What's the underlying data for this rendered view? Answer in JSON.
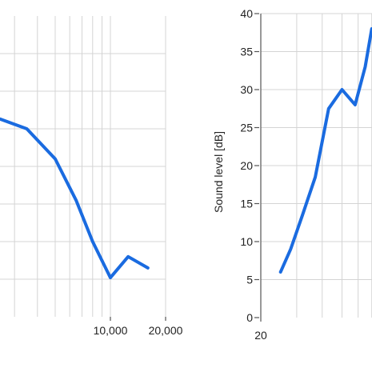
{
  "chart_data": [
    {
      "type": "line",
      "title": "",
      "xlabel": "",
      "ylabel": "",
      "x_scale": "log",
      "xlim": [
        1000,
        20000
      ],
      "ylim": [
        0,
        40
      ],
      "grid": true,
      "x_ticks": [
        {
          "value": 10000,
          "label": "10,000"
        },
        {
          "value": 20000,
          "label": "20,000"
        }
      ],
      "x_gridlines": [
        1000,
        2000,
        3000,
        4000,
        5000,
        6000,
        7000,
        8000,
        9000,
        10000,
        20000
      ],
      "y_gridlines": [
        5,
        10,
        15,
        20,
        25,
        30,
        35
      ],
      "series": [
        {
          "color": "#1a6be0",
          "x": [
            800,
            2000,
            2500,
            3500,
            5000,
            6500,
            8000,
            10000,
            12500,
            16000
          ],
          "y": [
            28.5,
            26.8,
            26.3,
            25.0,
            21.0,
            15.5,
            10.0,
            5.2,
            8.0,
            6.5
          ]
        }
      ]
    },
    {
      "type": "line",
      "title": "",
      "xlabel": "",
      "ylabel": "Sound level [dB]",
      "x_scale": "log",
      "xlim": [
        20,
        20000
      ],
      "ylim": [
        0,
        40
      ],
      "grid": true,
      "x_ticks": [
        {
          "value": 20,
          "label": "20"
        }
      ],
      "y_ticks": [
        {
          "value": 0,
          "label": "0"
        },
        {
          "value": 5,
          "label": "5"
        },
        {
          "value": 10,
          "label": "10"
        },
        {
          "value": 15,
          "label": "15"
        },
        {
          "value": 20,
          "label": "20"
        },
        {
          "value": 25,
          "label": "25"
        },
        {
          "value": 30,
          "label": "30"
        },
        {
          "value": 35,
          "label": "35"
        },
        {
          "value": 40,
          "label": "40"
        }
      ],
      "x_gridlines": [
        30,
        40,
        50,
        60,
        70,
        80,
        90,
        100
      ],
      "y_gridlines": [
        5,
        10,
        15,
        20,
        25,
        30,
        35,
        40
      ],
      "series": [
        {
          "color": "#1a6be0",
          "x": [
            25,
            28,
            32,
            37,
            43,
            50,
            58,
            65,
            70
          ],
          "y": [
            6,
            9,
            13.5,
            18.5,
            27.5,
            30,
            28,
            33,
            38
          ]
        }
      ]
    }
  ]
}
